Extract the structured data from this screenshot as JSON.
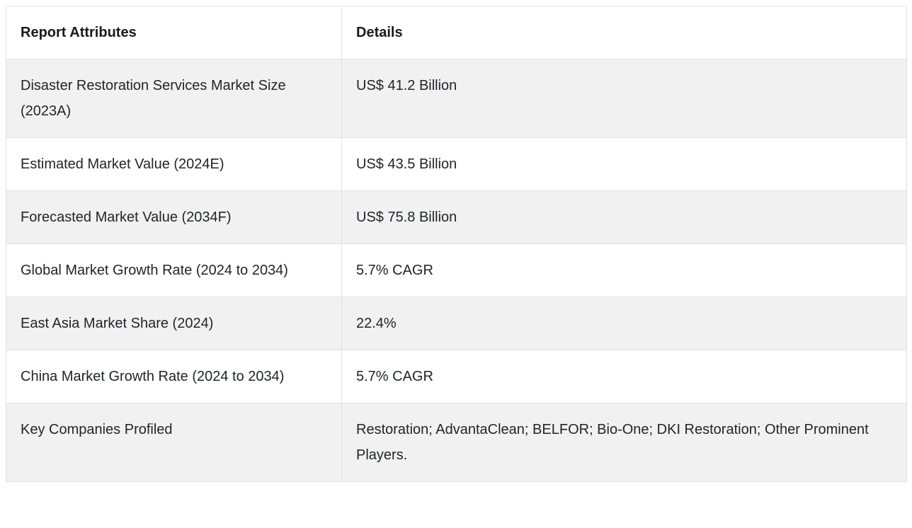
{
  "table": {
    "name": "report-attributes-table",
    "columns": {
      "attribute": "Report Attributes",
      "detail": "Details"
    },
    "rows": [
      {
        "attribute": "Disaster Restoration Services Market Size (2023A)",
        "detail": "US$ 41.2 Billion"
      },
      {
        "attribute": "Estimated Market Value (2024E)",
        "detail": "US$ 43.5 Billion"
      },
      {
        "attribute": "Forecasted Market Value (2034F)",
        "detail": "US$ 75.8 Billion"
      },
      {
        "attribute": "Global Market Growth Rate (2024 to 2034)",
        "detail": "5.7% CAGR"
      },
      {
        "attribute": "East Asia Market Share (2024)",
        "detail": "22.4%"
      },
      {
        "attribute": "China Market Growth Rate (2024 to 2034)",
        "detail": "5.7% CAGR"
      },
      {
        "attribute": "Key Companies Profiled",
        "detail": "Restoration; AdvantaClean; BELFOR; Bio-One; DKI Restoration; Other Prominent Players."
      }
    ],
    "colors": {
      "stripe_row_background": "#f1f1f2",
      "border": "#dee2e6",
      "text": "#212529",
      "header_text": "#151b20",
      "page_background": "#ffffff"
    }
  }
}
